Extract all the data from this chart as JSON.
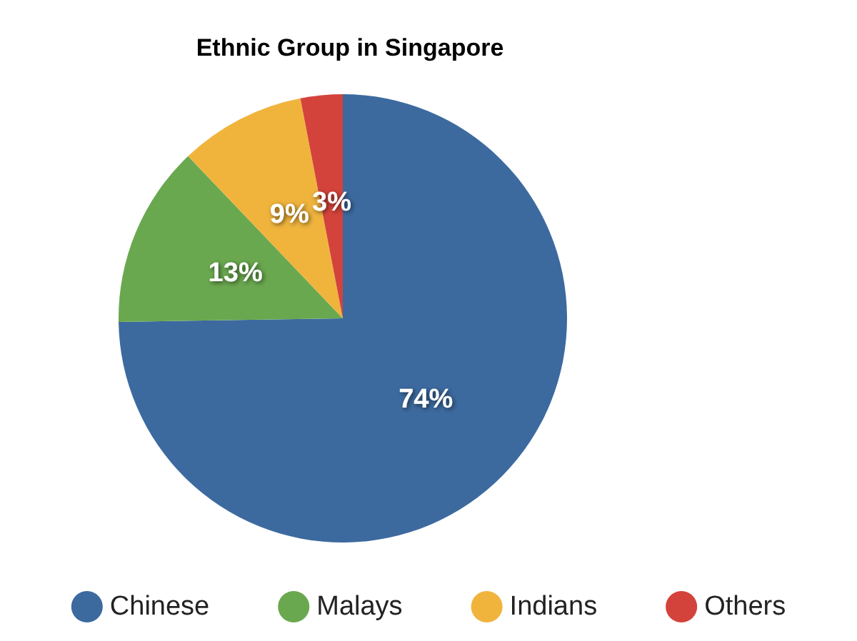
{
  "chart_data": {
    "type": "pie",
    "title": "Ethnic Group in Singapore",
    "categories": [
      "Chinese",
      "Malays",
      "Indians",
      "Others"
    ],
    "values": [
      74,
      13,
      9,
      3
    ],
    "colors": [
      "#3c6a9f",
      "#6aa84f",
      "#f0b43d",
      "#d3433b"
    ],
    "value_labels": [
      "74%",
      "13%",
      "9%",
      "3%"
    ],
    "legend": "bottom"
  }
}
